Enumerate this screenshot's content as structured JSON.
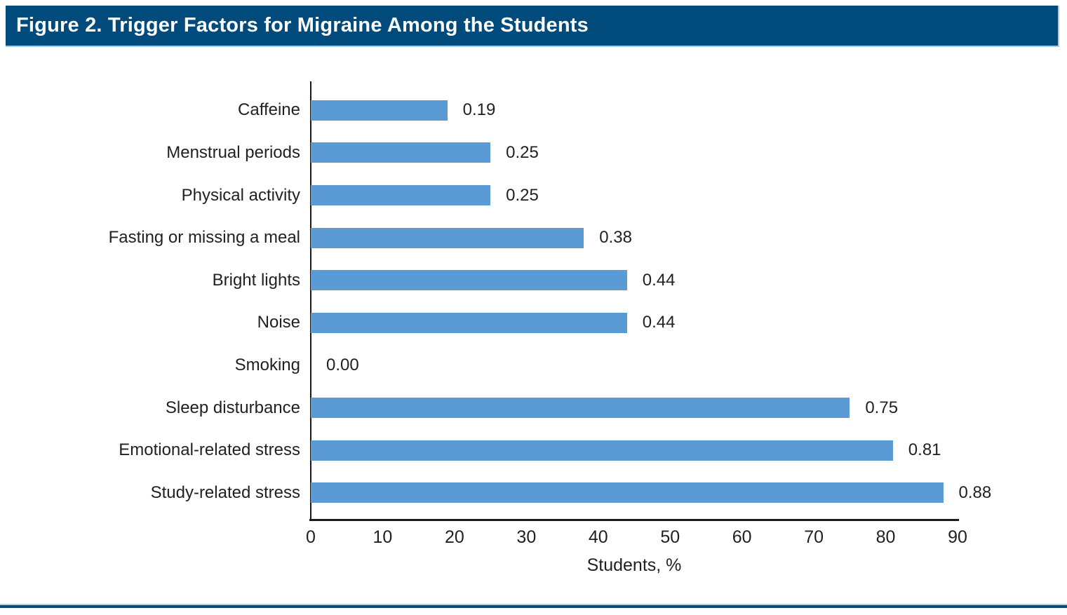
{
  "header": {
    "title": "Figure 2. Trigger Factors for Migraine Among the Students"
  },
  "chart_data": {
    "type": "bar",
    "orientation": "horizontal",
    "title": "Figure 2. Trigger Factors for Migraine Among the Students",
    "categories": [
      "Caffeine",
      "Menstrual periods",
      "Physical activity",
      "Fasting or missing a meal",
      "Bright lights",
      "Noise",
      "Smoking",
      "Sleep disturbance",
      "Emotional-related stress",
      "Study-related stress"
    ],
    "values": [
      0.19,
      0.25,
      0.25,
      0.38,
      0.44,
      0.44,
      0.0,
      0.75,
      0.81,
      0.88
    ],
    "value_labels": [
      "0.19",
      "0.25",
      "0.25",
      "0.38",
      "0.44",
      "0.44",
      "0.00",
      "0.75",
      "0.81",
      "0.88"
    ],
    "bar_lengths_percent": [
      19,
      25,
      25,
      38,
      44,
      44,
      0,
      75,
      81,
      88
    ],
    "xlabel": "Students, %",
    "x_ticks": [
      0,
      10,
      20,
      30,
      40,
      50,
      60,
      70,
      80,
      90
    ],
    "xlim": [
      0,
      90
    ],
    "grid": false,
    "legend": "none",
    "data_labels": "outside-end"
  },
  "colors": {
    "header_bg": "#004A7C",
    "header_text": "#FFFFFF",
    "bar_fill": "#5B9BD5",
    "axis": "#1A1A1A",
    "text": "#231F20",
    "rule_dark": "#11486F",
    "rule_light": "#AECBDF"
  }
}
